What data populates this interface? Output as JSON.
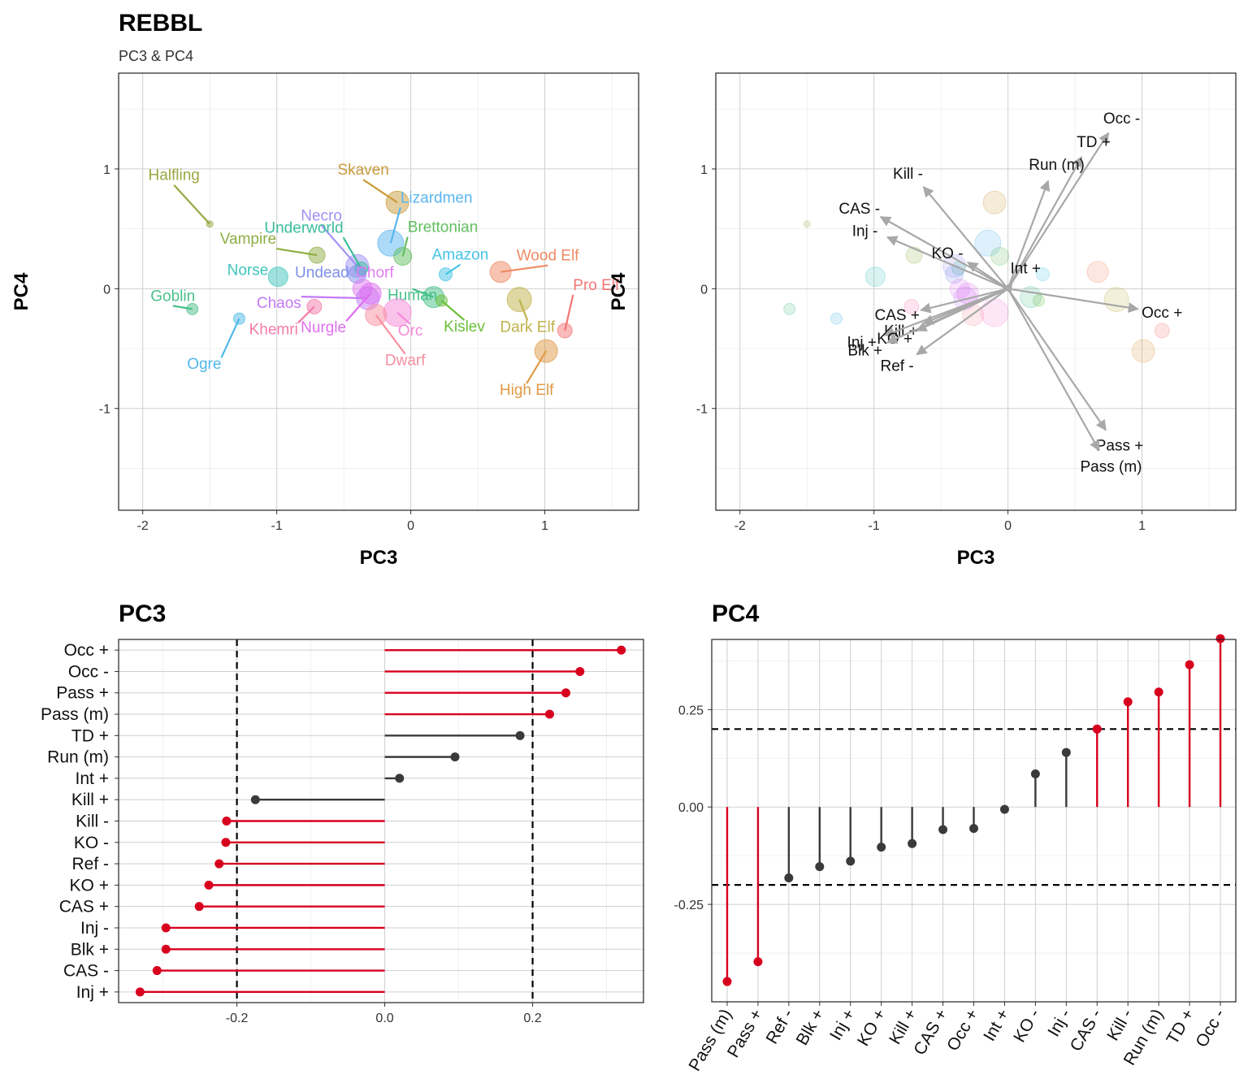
{
  "header": {
    "title": "REBBL",
    "subtitle": "PC3 & PC4"
  },
  "colors": {
    "highlight": "#d7001e",
    "neutral": "#3a3a3a",
    "arrow": "#a8a8a8"
  },
  "chart_data": [
    {
      "id": "scatter",
      "type": "scatter",
      "title": "",
      "xlabel": "PC3",
      "ylabel": "PC4",
      "xlim": [
        -2.18,
        1.7
      ],
      "ylim": [
        -1.85,
        1.8
      ],
      "xticks": [
        -2,
        -1,
        0,
        1
      ],
      "yticks": [
        -1,
        0,
        1
      ],
      "grid": true,
      "legend": "none",
      "points": [
        {
          "name": "Skaven",
          "x": -0.1,
          "y": 0.72,
          "size": 14,
          "color": "#c99b3b"
        },
        {
          "name": "Lizardmen",
          "x": -0.15,
          "y": 0.38,
          "size": 16,
          "color": "#5ab6f0"
        },
        {
          "name": "Brettonian",
          "x": -0.06,
          "y": 0.27,
          "size": 11,
          "color": "#62bf61"
        },
        {
          "name": "Necro",
          "x": -0.4,
          "y": 0.19,
          "size": 14,
          "color": "#9f93f5"
        },
        {
          "name": "Halfling",
          "x": -1.5,
          "y": 0.54,
          "size": 4,
          "color": "#9aa641"
        },
        {
          "name": "Vampire",
          "x": -0.7,
          "y": 0.28,
          "size": 10,
          "color": "#8fae44"
        },
        {
          "name": "Underworld",
          "x": -0.37,
          "y": 0.17,
          "size": 8,
          "color": "#3bbd9c"
        },
        {
          "name": "Amazon",
          "x": 0.26,
          "y": 0.12,
          "size": 8,
          "color": "#44c3e5"
        },
        {
          "name": "Wood Elf",
          "x": 0.67,
          "y": 0.14,
          "size": 13,
          "color": "#f08a64"
        },
        {
          "name": "Norse",
          "x": -0.99,
          "y": 0.1,
          "size": 12,
          "color": "#3ec4bc"
        },
        {
          "name": "Undead",
          "x": -0.4,
          "y": 0.12,
          "size": 11,
          "color": "#7f8fe8"
        },
        {
          "name": "Chorf",
          "x": -0.36,
          "y": 0.0,
          "size": 12,
          "color": "#e07cf2"
        },
        {
          "name": "Pro Elf",
          "x": 1.15,
          "y": -0.35,
          "size": 9,
          "color": "#f67676"
        },
        {
          "name": "Goblin",
          "x": -1.63,
          "y": -0.17,
          "size": 7,
          "color": "#4bbf8a"
        },
        {
          "name": "Chaos",
          "x": -0.32,
          "y": -0.08,
          "size": 14,
          "color": "#c47af5"
        },
        {
          "name": "Human",
          "x": 0.17,
          "y": -0.07,
          "size": 13,
          "color": "#47c08a"
        },
        {
          "name": "Dark Elf",
          "x": 0.81,
          "y": -0.09,
          "size": 15,
          "color": "#bfb24a"
        },
        {
          "name": "Kislev",
          "x": 0.23,
          "y": -0.1,
          "size": 7,
          "color": "#6bbf3a"
        },
        {
          "name": "Khemri",
          "x": -0.72,
          "y": -0.15,
          "size": 9,
          "color": "#f47aa9"
        },
        {
          "name": "Nurgle",
          "x": -0.3,
          "y": -0.04,
          "size": 13,
          "color": "#df6ff0"
        },
        {
          "name": "Orc",
          "x": -0.1,
          "y": -0.2,
          "size": 17,
          "color": "#f688d8"
        },
        {
          "name": "Dwarf",
          "x": -0.26,
          "y": -0.22,
          "size": 13,
          "color": "#f78fa0"
        },
        {
          "name": "Ogre",
          "x": -1.28,
          "y": -0.25,
          "size": 7,
          "color": "#50b8ea"
        },
        {
          "name": "High Elf",
          "x": 1.01,
          "y": -0.52,
          "size": 14,
          "color": "#e09a46"
        }
      ]
    },
    {
      "id": "biplot",
      "type": "scatter",
      "title": "",
      "xlabel": "PC3",
      "ylabel": "PC4",
      "xlim": [
        -2.18,
        1.7
      ],
      "ylim": [
        -1.85,
        1.8
      ],
      "xticks": [
        -2,
        -1,
        0,
        1
      ],
      "yticks": [
        -1,
        0,
        1
      ],
      "grid": true,
      "legend": "none",
      "arrows": [
        {
          "name": "Occ -",
          "x": 0.75,
          "y": 1.3
        },
        {
          "name": "TD +",
          "x": 0.55,
          "y": 1.1
        },
        {
          "name": "Kill -",
          "x": -0.63,
          "y": 0.85
        },
        {
          "name": "Run (m)",
          "x": 0.3,
          "y": 0.9
        },
        {
          "name": "CAS -",
          "x": -0.95,
          "y": 0.6
        },
        {
          "name": "Inj -",
          "x": -0.9,
          "y": 0.43
        },
        {
          "name": "KO -",
          "x": -0.3,
          "y": 0.22
        },
        {
          "name": "Int +",
          "x": 0.03,
          "y": 0.05
        },
        {
          "name": "Occ +",
          "x": 0.97,
          "y": -0.17
        },
        {
          "name": "CAS +",
          "x": -0.65,
          "y": -0.18
        },
        {
          "name": "Kill +",
          "x": -0.63,
          "y": -0.29
        },
        {
          "name": "Inj +",
          "x": -0.92,
          "y": -0.39
        },
        {
          "name": "KO +",
          "x": -0.68,
          "y": -0.35
        },
        {
          "name": "Blk +",
          "x": -0.9,
          "y": -0.45
        },
        {
          "name": "Ref -",
          "x": -0.68,
          "y": -0.55
        },
        {
          "name": "Pass +",
          "x": 0.73,
          "y": -1.18
        },
        {
          "name": "Pass (m)",
          "x": 0.68,
          "y": -1.35
        }
      ]
    },
    {
      "id": "pc3",
      "type": "bar",
      "title": "PC3",
      "xlabel": "",
      "ylabel": "",
      "orientation": "horizontal",
      "xlim": [
        -0.36,
        0.35
      ],
      "xticks": [
        -0.2,
        0.0,
        0.2
      ],
      "threshold": 0.2,
      "grid": true,
      "categories": [
        "Occ +",
        "Occ -",
        "Pass +",
        "Pass (m)",
        "TD +",
        "Run (m)",
        "Int +",
        "Kill +",
        "Kill -",
        "KO -",
        "Ref -",
        "KO +",
        "CAS +",
        "Inj -",
        "Blk +",
        "CAS -",
        "Inj +"
      ],
      "values": [
        0.32,
        0.264,
        0.245,
        0.223,
        0.183,
        0.095,
        0.02,
        -0.175,
        -0.214,
        -0.215,
        -0.224,
        -0.238,
        -0.251,
        -0.296,
        -0.296,
        -0.308,
        -0.331
      ]
    },
    {
      "id": "pc4",
      "type": "bar",
      "title": "PC4",
      "xlabel": "",
      "ylabel": "",
      "orientation": "vertical",
      "ylim": [
        -0.5,
        0.43
      ],
      "yticks": [
        -0.25,
        0.0,
        0.25
      ],
      "threshold": 0.2,
      "grid": true,
      "categories": [
        "Pass (m)",
        "Pass +",
        "Ref -",
        "Blk +",
        "Inj +",
        "KO +",
        "Kill +",
        "CAS +",
        "Occ +",
        "Int +",
        "KO -",
        "Inj -",
        "CAS -",
        "Kill -",
        "Run (m)",
        "TD +",
        "Occ -"
      ],
      "values": [
        -0.448,
        -0.397,
        -0.182,
        -0.153,
        -0.139,
        -0.103,
        -0.094,
        -0.058,
        -0.055,
        -0.006,
        0.085,
        0.14,
        0.2,
        0.27,
        0.295,
        0.365,
        0.432
      ]
    }
  ]
}
